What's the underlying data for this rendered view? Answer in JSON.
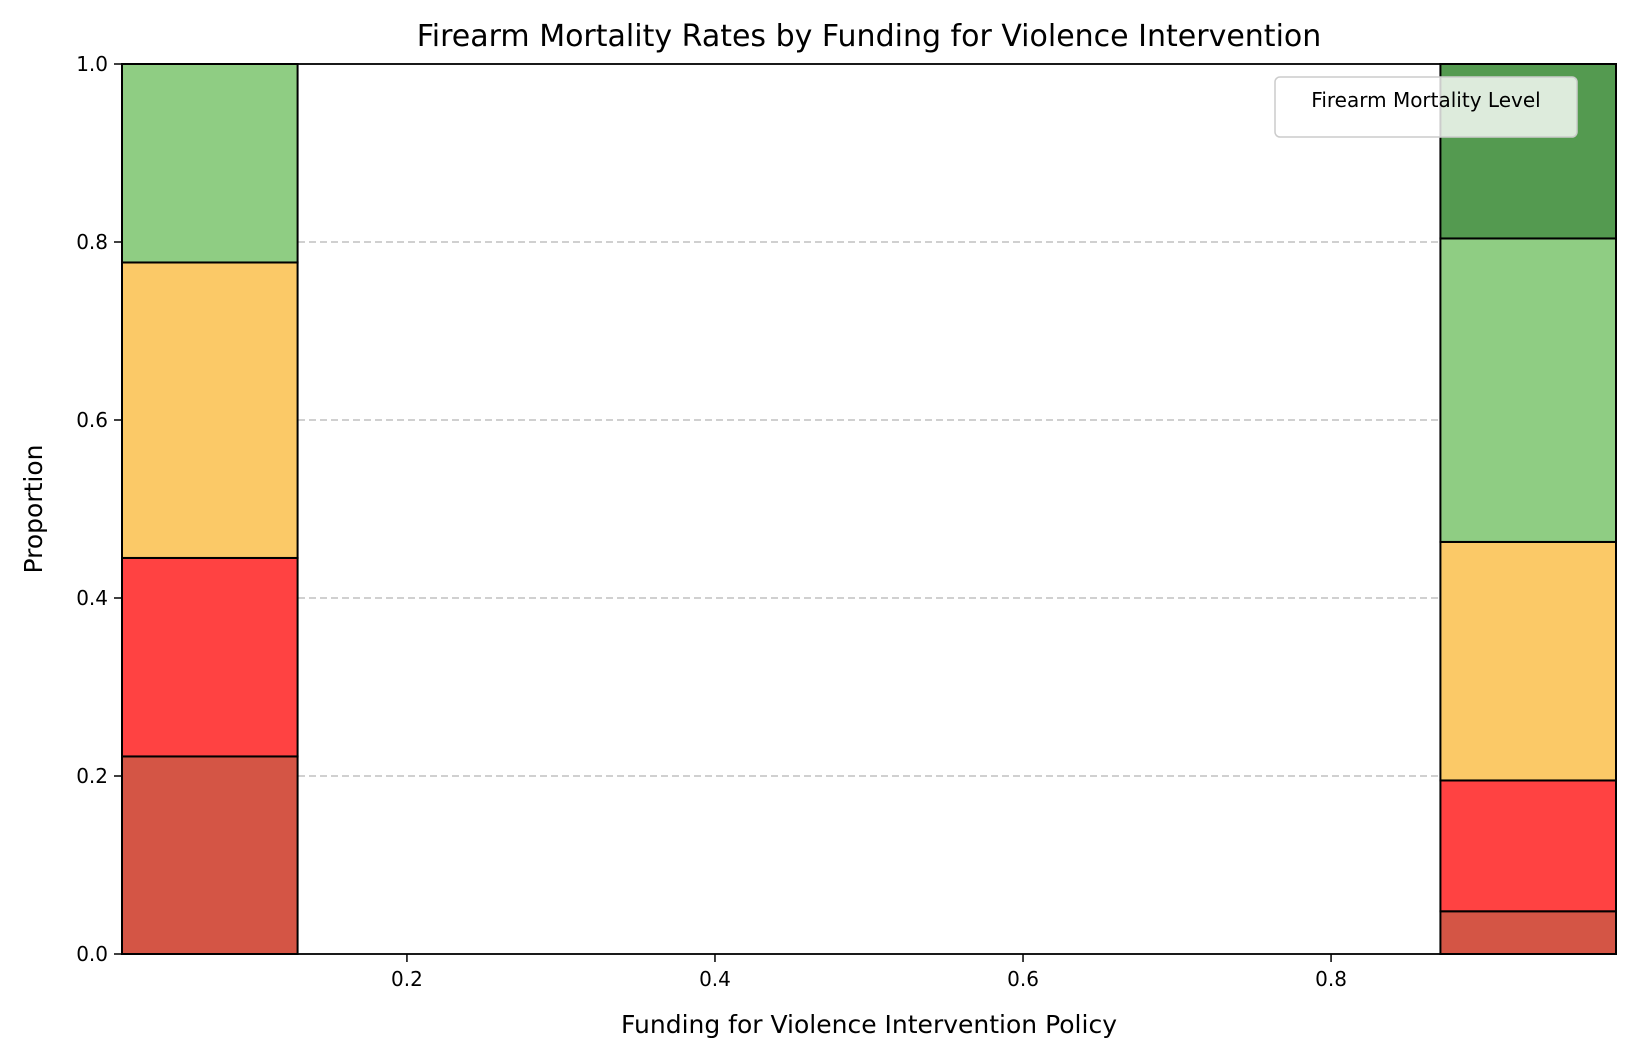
{
  "chart_data": {
    "type": "bar",
    "subtype": "stacked-proportion",
    "title": "Firearm Mortality Rates by Funding for Violence Intervention",
    "xlabel": "Funding for Violence Intervention Policy",
    "ylabel": "Proportion",
    "xlim": [
      0.015,
      0.985
    ],
    "ylim": [
      0,
      1
    ],
    "xticks": [
      {
        "value": 0.2,
        "label": "0.2"
      },
      {
        "value": 0.4,
        "label": "0.4"
      },
      {
        "value": 0.6,
        "label": "0.6"
      },
      {
        "value": 0.8,
        "label": "0.8"
      }
    ],
    "yticks": [
      {
        "value": 0.0,
        "label": "0.0"
      },
      {
        "value": 0.2,
        "label": "0.2"
      },
      {
        "value": 0.4,
        "label": "0.4"
      },
      {
        "value": 0.6,
        "label": "0.6"
      },
      {
        "value": 0.8,
        "label": "0.8"
      },
      {
        "value": 1.0,
        "label": "1.0"
      }
    ],
    "grid": {
      "axis": "y",
      "style": "dashed",
      "color": "#c0c0c0"
    },
    "legend": {
      "title": "Firearm Mortality Level",
      "placement": "top-right",
      "entries": []
    },
    "bins": [
      {
        "x_start": 0.015,
        "x_end": 0.129,
        "segments": [
          {
            "value": 0.222,
            "color": "#d45545"
          },
          {
            "value": 0.223,
            "color": "#ff4242"
          },
          {
            "value": 0.332,
            "color": "#fbc967"
          },
          {
            "value": 0.223,
            "color": "#8fcd83"
          }
        ]
      },
      {
        "x_start": 0.871,
        "x_end": 0.985,
        "segments": [
          {
            "value": 0.048,
            "color": "#d45545"
          },
          {
            "value": 0.147,
            "color": "#ff4242"
          },
          {
            "value": 0.268,
            "color": "#fbc967"
          },
          {
            "value": 0.341,
            "color": "#8fcd83"
          },
          {
            "value": 0.196,
            "color": "#549a50"
          }
        ]
      }
    ]
  }
}
